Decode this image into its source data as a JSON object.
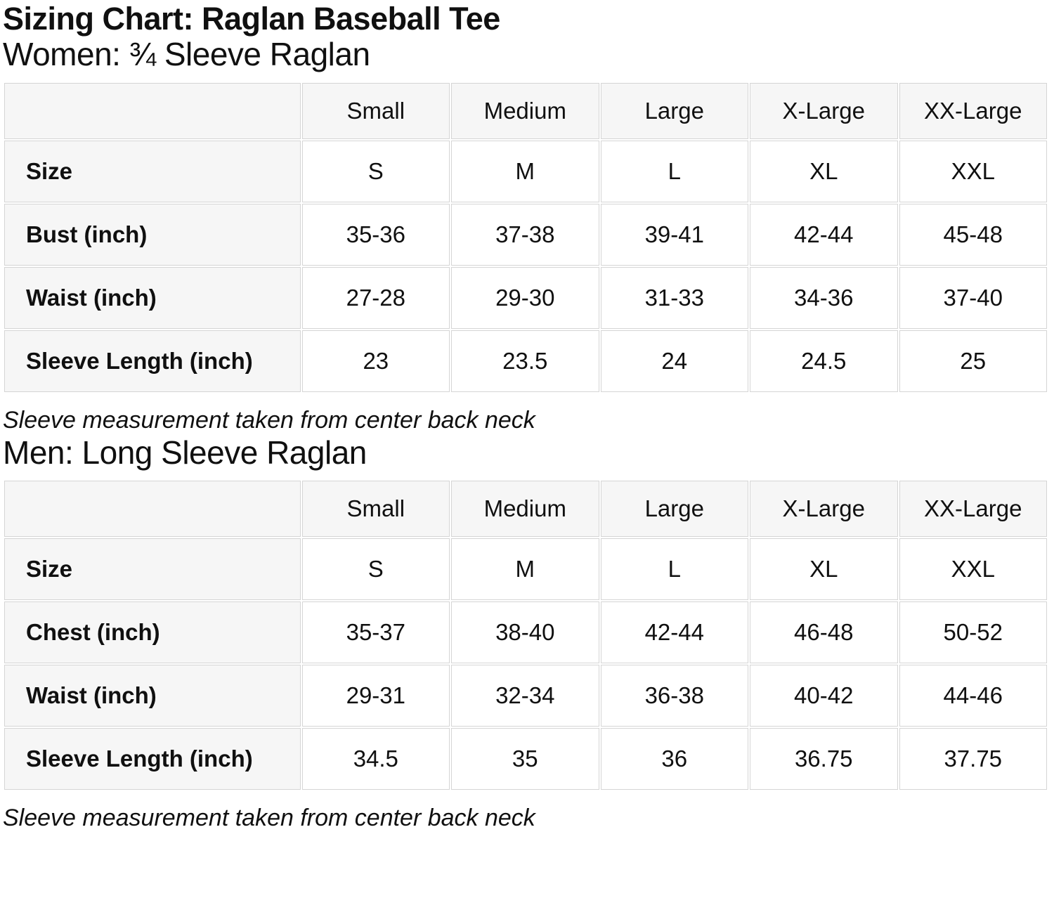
{
  "page": {
    "title": "Sizing Chart: Raglan Baseball Tee"
  },
  "colors": {
    "header_cell_bg": "#f6f6f6",
    "cell_border": "#d5d5d5",
    "text": "#101010",
    "background": "#ffffff"
  },
  "sections": [
    {
      "heading": "Women: ¾ Sleeve Raglan",
      "note": "Sleeve measurement taken from center back neck",
      "table": {
        "columns": [
          "",
          "Small",
          "Medium",
          "Large",
          "X-Large",
          "XX-Large"
        ],
        "rows": [
          {
            "label": "Size",
            "values": [
              "S",
              "M",
              "L",
              "XL",
              "XXL"
            ]
          },
          {
            "label": "Bust (inch)",
            "values": [
              "35-36",
              "37-38",
              "39-41",
              "42-44",
              "45-48"
            ]
          },
          {
            "label": "Waist (inch)",
            "values": [
              "27-28",
              "29-30",
              "31-33",
              "34-36",
              "37-40"
            ]
          },
          {
            "label": "Sleeve Length (inch)",
            "values": [
              "23",
              "23.5",
              "24",
              "24.5",
              "25"
            ]
          }
        ]
      }
    },
    {
      "heading": "Men: Long Sleeve Raglan",
      "note": "Sleeve measurement taken from center back neck",
      "table": {
        "columns": [
          "",
          "Small",
          "Medium",
          "Large",
          "X-Large",
          "XX-Large"
        ],
        "rows": [
          {
            "label": "Size",
            "values": [
              "S",
              "M",
              "L",
              "XL",
              "XXL"
            ]
          },
          {
            "label": "Chest (inch)",
            "values": [
              "35-37",
              "38-40",
              "42-44",
              "46-48",
              "50-52"
            ]
          },
          {
            "label": "Waist (inch)",
            "values": [
              "29-31",
              "32-34",
              "36-38",
              "40-42",
              "44-46"
            ]
          },
          {
            "label": "Sleeve Length (inch)",
            "values": [
              "34.5",
              "35",
              "36",
              "36.75",
              "37.75"
            ]
          }
        ]
      }
    }
  ]
}
